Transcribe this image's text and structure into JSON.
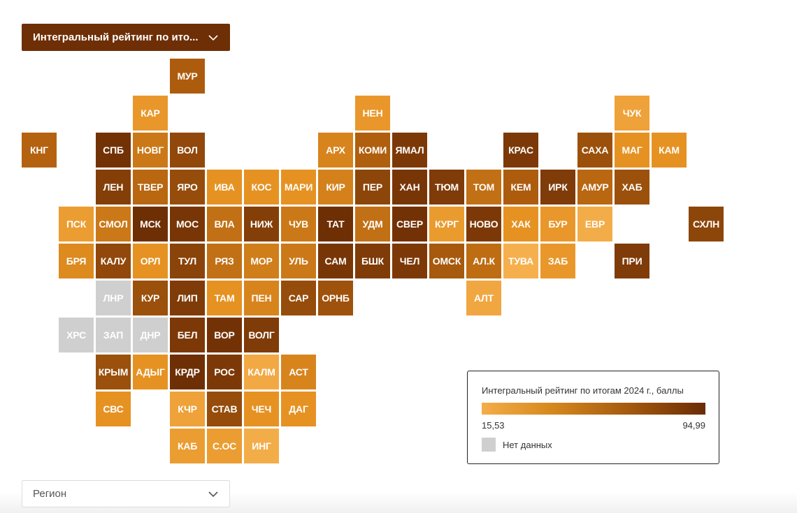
{
  "metric_select": {
    "label": "Интегральный рейтинг по ито...",
    "icon": "chevron-down-icon"
  },
  "region_select": {
    "placeholder": "Регион",
    "icon": "chevron-down-icon"
  },
  "legend": {
    "title": "Интегральный рейтинг по итогам 2024 г., баллы",
    "min_label": "15,53",
    "max_label": "94,99",
    "nodata_label": "Нет данных",
    "colors": {
      "low": "#f5ad4a",
      "mid": "#c5741a",
      "high": "#6a2c05",
      "nodata": "#cfcfcf"
    }
  },
  "tiles": [
    {
      "label": "МУР",
      "col": 4,
      "row": 0,
      "level": 0.62
    },
    {
      "label": "КАР",
      "col": 3,
      "row": 1,
      "level": 0.25
    },
    {
      "label": "НЕН",
      "col": 9,
      "row": 1,
      "level": 0.25
    },
    {
      "label": "ЧУК",
      "col": 16,
      "row": 1,
      "level": 0.15
    },
    {
      "label": "КНГ",
      "col": 0,
      "row": 2,
      "level": 0.58
    },
    {
      "label": "СПБ",
      "col": 2,
      "row": 2,
      "level": 0.95
    },
    {
      "label": "НОВГ",
      "col": 3,
      "row": 2,
      "level": 0.45
    },
    {
      "label": "ВОЛ",
      "col": 4,
      "row": 2,
      "level": 0.78
    },
    {
      "label": "АРХ",
      "col": 8,
      "row": 2,
      "level": 0.38
    },
    {
      "label": "КОМИ",
      "col": 9,
      "row": 2,
      "level": 0.6
    },
    {
      "label": "ЯМАЛ",
      "col": 10,
      "row": 2,
      "level": 0.9
    },
    {
      "label": "КРАС",
      "col": 13,
      "row": 2,
      "level": 0.9
    },
    {
      "label": "САХА",
      "col": 15,
      "row": 2,
      "level": 0.72
    },
    {
      "label": "МАГ",
      "col": 16,
      "row": 2,
      "level": 0.3
    },
    {
      "label": "КАМ",
      "col": 17,
      "row": 2,
      "level": 0.3
    },
    {
      "label": "ЛЕН",
      "col": 2,
      "row": 3,
      "level": 0.85
    },
    {
      "label": "ТВЕР",
      "col": 3,
      "row": 3,
      "level": 0.55
    },
    {
      "label": "ЯРО",
      "col": 4,
      "row": 3,
      "level": 0.75
    },
    {
      "label": "ИВА",
      "col": 5,
      "row": 3,
      "level": 0.3
    },
    {
      "label": "КОС",
      "col": 6,
      "row": 3,
      "level": 0.3
    },
    {
      "label": "МАРИ",
      "col": 7,
      "row": 3,
      "level": 0.3
    },
    {
      "label": "КИР",
      "col": 8,
      "row": 3,
      "level": 0.4
    },
    {
      "label": "ПЕР",
      "col": 9,
      "row": 3,
      "level": 0.8
    },
    {
      "label": "ХАН",
      "col": 10,
      "row": 3,
      "level": 0.92
    },
    {
      "label": "ТЮМ",
      "col": 11,
      "row": 3,
      "level": 0.88
    },
    {
      "label": "ТОМ",
      "col": 12,
      "row": 3,
      "level": 0.5
    },
    {
      "label": "КЕМ",
      "col": 13,
      "row": 3,
      "level": 0.62
    },
    {
      "label": "ИРК",
      "col": 14,
      "row": 3,
      "level": 0.88
    },
    {
      "label": "АМУР",
      "col": 15,
      "row": 3,
      "level": 0.55
    },
    {
      "label": "ХАБ",
      "col": 16,
      "row": 3,
      "level": 0.72
    },
    {
      "label": "ПСК",
      "col": 1,
      "row": 4,
      "level": 0.2
    },
    {
      "label": "СМОЛ",
      "col": 2,
      "row": 4,
      "level": 0.45
    },
    {
      "label": "МСК",
      "col": 3,
      "row": 4,
      "level": 0.98
    },
    {
      "label": "МОС",
      "col": 4,
      "row": 4,
      "level": 0.92
    },
    {
      "label": "ВЛА",
      "col": 5,
      "row": 4,
      "level": 0.5
    },
    {
      "label": "НИЖ",
      "col": 6,
      "row": 4,
      "level": 0.85
    },
    {
      "label": "ЧУВ",
      "col": 7,
      "row": 4,
      "level": 0.45
    },
    {
      "label": "ТАТ",
      "col": 8,
      "row": 4,
      "level": 0.98
    },
    {
      "label": "УДМ",
      "col": 9,
      "row": 4,
      "level": 0.5
    },
    {
      "label": "СВЕР",
      "col": 10,
      "row": 4,
      "level": 0.95
    },
    {
      "label": "КУРГ",
      "col": 11,
      "row": 4,
      "level": 0.22
    },
    {
      "label": "НОВО",
      "col": 12,
      "row": 4,
      "level": 0.9
    },
    {
      "label": "ХАК",
      "col": 13,
      "row": 4,
      "level": 0.3
    },
    {
      "label": "БУР",
      "col": 14,
      "row": 4,
      "level": 0.25
    },
    {
      "label": "ЕВР",
      "col": 15,
      "row": 4,
      "level": 0.05
    },
    {
      "label": "СХЛН",
      "col": 18,
      "row": 4,
      "level": 0.8
    },
    {
      "label": "БРЯ",
      "col": 1,
      "row": 5,
      "level": 0.35
    },
    {
      "label": "КАЛУ",
      "col": 2,
      "row": 5,
      "level": 0.78
    },
    {
      "label": "ОРЛ",
      "col": 3,
      "row": 5,
      "level": 0.3
    },
    {
      "label": "ТУЛ",
      "col": 4,
      "row": 5,
      "level": 0.82
    },
    {
      "label": "РЯЗ",
      "col": 5,
      "row": 5,
      "level": 0.5
    },
    {
      "label": "МОР",
      "col": 6,
      "row": 5,
      "level": 0.42
    },
    {
      "label": "УЛЬ",
      "col": 7,
      "row": 5,
      "level": 0.45
    },
    {
      "label": "САМ",
      "col": 8,
      "row": 5,
      "level": 0.92
    },
    {
      "label": "БШК",
      "col": 9,
      "row": 5,
      "level": 0.88
    },
    {
      "label": "ЧЕЛ",
      "col": 10,
      "row": 5,
      "level": 0.9
    },
    {
      "label": "ОМСК",
      "col": 11,
      "row": 5,
      "level": 0.65
    },
    {
      "label": "АЛ.К",
      "col": 12,
      "row": 5,
      "level": 0.52
    },
    {
      "label": "ТУВА",
      "col": 13,
      "row": 5,
      "level": 0.02
    },
    {
      "label": "ЗАБ",
      "col": 14,
      "row": 5,
      "level": 0.25
    },
    {
      "label": "ПРИ",
      "col": 16,
      "row": 5,
      "level": 0.88
    },
    {
      "label": "ЛНР",
      "col": 2,
      "row": 6,
      "level": null
    },
    {
      "label": "КУР",
      "col": 3,
      "row": 6,
      "level": 0.72
    },
    {
      "label": "ЛИП",
      "col": 4,
      "row": 6,
      "level": 0.88
    },
    {
      "label": "ТАМ",
      "col": 5,
      "row": 6,
      "level": 0.3
    },
    {
      "label": "ПЕН",
      "col": 6,
      "row": 6,
      "level": 0.38
    },
    {
      "label": "САР",
      "col": 7,
      "row": 6,
      "level": 0.75
    },
    {
      "label": "ОРНБ",
      "col": 8,
      "row": 6,
      "level": 0.7
    },
    {
      "label": "АЛТ",
      "col": 12,
      "row": 6,
      "level": 0.1
    },
    {
      "label": "ХРС",
      "col": 1,
      "row": 7,
      "level": null
    },
    {
      "label": "ЗАП",
      "col": 2,
      "row": 7,
      "level": null
    },
    {
      "label": "ДНР",
      "col": 3,
      "row": 7,
      "level": null
    },
    {
      "label": "БЕЛ",
      "col": 4,
      "row": 7,
      "level": 0.9
    },
    {
      "label": "ВОР",
      "col": 5,
      "row": 7,
      "level": 0.95
    },
    {
      "label": "ВОЛГ",
      "col": 6,
      "row": 7,
      "level": 0.88
    },
    {
      "label": "КРЫМ",
      "col": 2,
      "row": 8,
      "level": 0.72
    },
    {
      "label": "АДЫГ",
      "col": 3,
      "row": 8,
      "level": 0.3
    },
    {
      "label": "КРДР",
      "col": 4,
      "row": 8,
      "level": 0.98
    },
    {
      "label": "РОС",
      "col": 5,
      "row": 8,
      "level": 0.9
    },
    {
      "label": "КАЛМ",
      "col": 6,
      "row": 8,
      "level": 0.08
    },
    {
      "label": "АСТ",
      "col": 7,
      "row": 8,
      "level": 0.38
    },
    {
      "label": "СВС",
      "col": 2,
      "row": 9,
      "level": 0.3
    },
    {
      "label": "КЧР",
      "col": 4,
      "row": 9,
      "level": 0.15
    },
    {
      "label": "СТАВ",
      "col": 5,
      "row": 9,
      "level": 0.75
    },
    {
      "label": "ЧЕЧ",
      "col": 6,
      "row": 9,
      "level": 0.3
    },
    {
      "label": "ДАГ",
      "col": 7,
      "row": 9,
      "level": 0.3
    },
    {
      "label": "КАБ",
      "col": 4,
      "row": 10,
      "level": 0.2
    },
    {
      "label": "С.ОС",
      "col": 5,
      "row": 10,
      "level": 0.2
    },
    {
      "label": "ИНГ",
      "col": 6,
      "row": 10,
      "level": 0.05
    }
  ]
}
